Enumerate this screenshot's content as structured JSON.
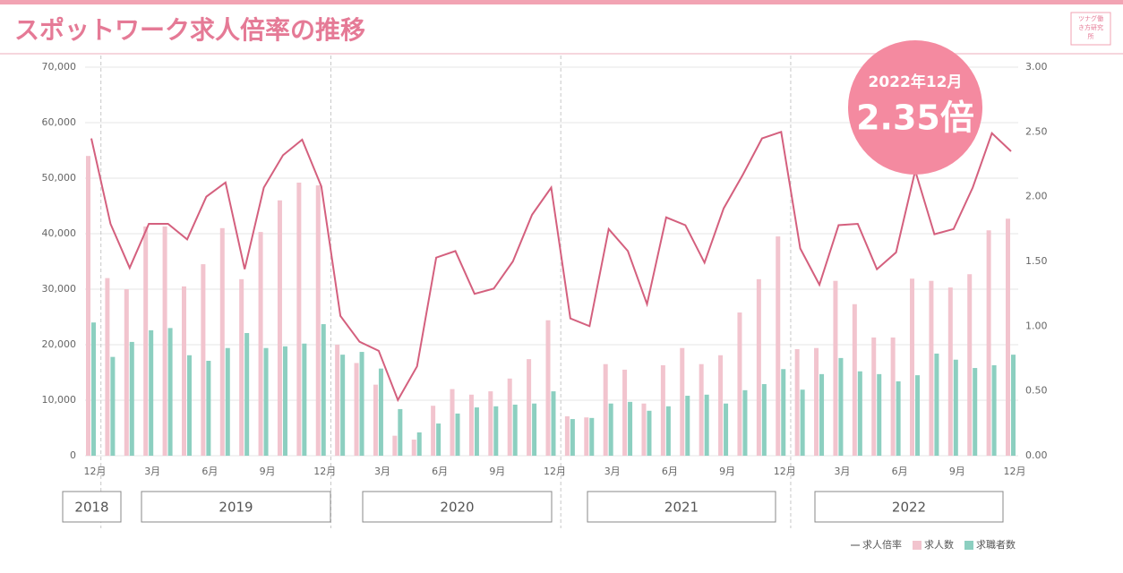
{
  "chart_data": {
    "type": "combo",
    "title": "スポットワーク求人倍率の推移",
    "logo": "ツナグ働き方研究所",
    "annotation": {
      "date": "2022年12月",
      "value": "2.35倍"
    },
    "categories": [
      "12月",
      null,
      null,
      "3月",
      null,
      null,
      "6月",
      null,
      null,
      "9月",
      null,
      null,
      "12月",
      null,
      null,
      "3月",
      null,
      null,
      "6月",
      null,
      null,
      "9月",
      null,
      null,
      "12月",
      null,
      null,
      "3月",
      null,
      null,
      "6月",
      null,
      null,
      "9月",
      null,
      null,
      "12月",
      null,
      null,
      "3月",
      null,
      null,
      "6月",
      null,
      null,
      "9月",
      null,
      null,
      "12月"
    ],
    "years": [
      "2018",
      "2019",
      "2020",
      "2021",
      "2022"
    ],
    "series": [
      {
        "name": "求人倍率",
        "color": "#d4607e",
        "type": "line",
        "axis": "y2",
        "values": [
          2.45,
          1.79,
          1.45,
          1.79,
          1.79,
          1.67,
          2.0,
          2.11,
          1.44,
          2.07,
          2.32,
          2.44,
          2.08,
          1.08,
          0.88,
          0.81,
          0.43,
          0.69,
          1.53,
          1.58,
          1.25,
          1.29,
          1.5,
          1.86,
          2.07,
          1.06,
          1.0,
          1.75,
          1.58,
          1.17,
          1.84,
          1.78,
          1.49,
          1.91,
          2.17,
          2.45,
          2.5,
          1.6,
          1.32,
          1.78,
          1.79,
          1.44,
          1.57,
          2.2,
          1.71,
          1.75,
          2.07,
          2.49,
          2.35
        ]
      },
      {
        "name": "求人数",
        "color": "#f2c4ce",
        "type": "bar",
        "values": [
          54000,
          32000,
          30000,
          41300,
          41300,
          30500,
          34500,
          41000,
          31800,
          40300,
          46000,
          49200,
          48700,
          20000,
          16700,
          12800,
          3600,
          2900,
          9000,
          12000,
          11000,
          11600,
          13900,
          17400,
          24400,
          7100,
          6900,
          16500,
          15500,
          9400,
          16300,
          19400,
          16500,
          18100,
          25800,
          31800,
          39500,
          19200,
          19400,
          31500,
          27300,
          21300,
          21300,
          31900,
          31500,
          30300,
          32700,
          40600,
          42700
        ]
      },
      {
        "name": "求職者数",
        "color": "#8ccfc0",
        "type": "bar",
        "values": [
          24000,
          17800,
          20500,
          22600,
          23000,
          18100,
          17100,
          19400,
          22100,
          19400,
          19700,
          20200,
          23700,
          18200,
          18700,
          15700,
          8400,
          4200,
          5800,
          7600,
          8700,
          8900,
          9200,
          9400,
          11600,
          6600,
          6800,
          9400,
          9700,
          8100,
          8900,
          10800,
          11000,
          9400,
          11800,
          12900,
          15600,
          11900,
          14700,
          17600,
          15200,
          14700,
          13400,
          14500,
          18400,
          17300,
          15800,
          16300,
          18200
        ]
      }
    ],
    "ylim": [
      0,
      70000
    ],
    "yticks": [
      0,
      {
        "value": 10000,
        "label": "10,000"
      },
      {
        "value": 20000,
        "label": "20,000"
      },
      {
        "value": 30000,
        "label": "30,000"
      },
      {
        "value": 40000,
        "label": "40,000"
      },
      {
        "value": 50000,
        "label": "50,000"
      },
      {
        "value": 60000,
        "label": "60,000"
      },
      {
        "value": 70000,
        "label": "70,000"
      }
    ],
    "y2lim": [
      0,
      3
    ],
    "y2ticks": [
      {
        "value": 0,
        "label": "0.00"
      },
      {
        "value": 0.5,
        "label": "0.50"
      },
      {
        "value": 1,
        "label": "1.00"
      },
      {
        "value": 1.5,
        "label": "1.50"
      },
      {
        "value": 2,
        "label": "2.00"
      },
      {
        "value": 2.5,
        "label": "2.50"
      },
      {
        "value": 3,
        "label": "3.00"
      }
    ],
    "grid": true
  }
}
